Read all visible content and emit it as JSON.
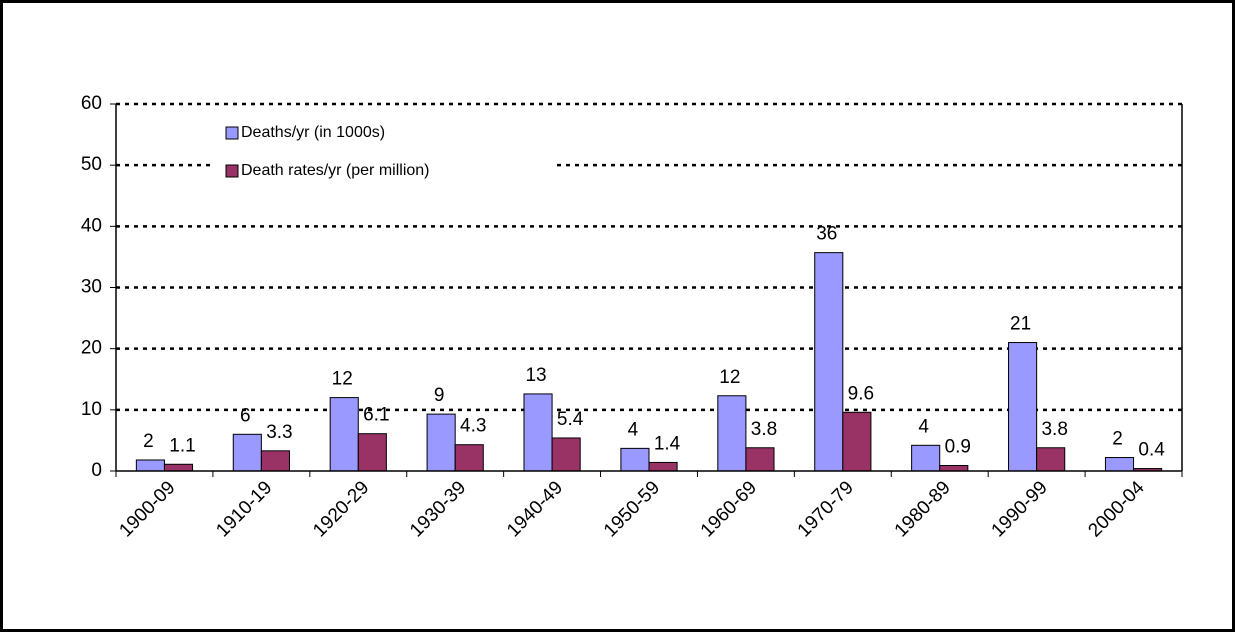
{
  "chart_data": {
    "type": "bar",
    "categories": [
      "1900-09",
      "1910-19",
      "1920-29",
      "1930-39",
      "1940-49",
      "1950-59",
      "1960-69",
      "1970-79",
      "1980-89",
      "1990-99",
      "2000-04"
    ],
    "series": [
      {
        "name": "Deaths/yr (in 1000s)",
        "color": "#9999ff",
        "values": [
          1.8,
          6,
          12,
          9.3,
          12.6,
          3.7,
          12.3,
          35.7,
          4.2,
          21,
          2.2
        ],
        "value_labels": [
          "2",
          "6",
          "12",
          "9",
          "13",
          "4",
          "12",
          "36",
          "4",
          "21",
          "2"
        ]
      },
      {
        "name": "Death rates/yr (per million)",
        "color": "#993366",
        "values": [
          1.1,
          3.3,
          6.1,
          4.3,
          5.4,
          1.4,
          3.8,
          9.6,
          0.9,
          3.8,
          0.4
        ]
      }
    ],
    "ylim": [
      0,
      60
    ],
    "yticks": [
      0,
      10,
      20,
      30,
      40,
      50,
      60
    ],
    "grid": true
  }
}
